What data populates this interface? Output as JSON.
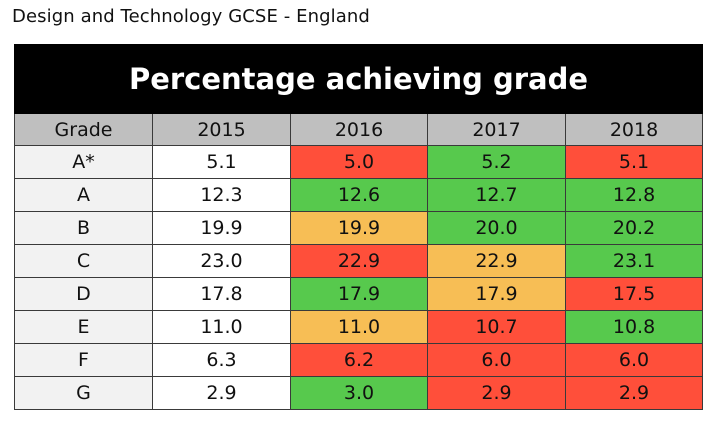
{
  "caption": "Design and Technology GCSE - England",
  "table": {
    "title": "Percentage achieving grade",
    "headers": [
      "Grade",
      "2015",
      "2016",
      "2017",
      "2018"
    ],
    "colors": {
      "red": "#ff4f3a",
      "green": "#57c94d",
      "amber": "#f7be55",
      "header_bg": "#bfbfbf",
      "label_bg": "#f2f2f2",
      "title_bg": "#000000"
    },
    "rows": [
      {
        "grade": "A*",
        "values": [
          "5.1",
          "5.0",
          "5.2",
          "5.1"
        ],
        "colors": [
          "white",
          "red",
          "green",
          "red"
        ]
      },
      {
        "grade": "A",
        "values": [
          "12.3",
          "12.6",
          "12.7",
          "12.8"
        ],
        "colors": [
          "white",
          "green",
          "green",
          "green"
        ]
      },
      {
        "grade": "B",
        "values": [
          "19.9",
          "19.9",
          "20.0",
          "20.2"
        ],
        "colors": [
          "white",
          "amber",
          "green",
          "green"
        ]
      },
      {
        "grade": "C",
        "values": [
          "23.0",
          "22.9",
          "22.9",
          "23.1"
        ],
        "colors": [
          "white",
          "red",
          "amber",
          "green"
        ]
      },
      {
        "grade": "D",
        "values": [
          "17.8",
          "17.9",
          "17.9",
          "17.5"
        ],
        "colors": [
          "white",
          "green",
          "amber",
          "red"
        ]
      },
      {
        "grade": "E",
        "values": [
          "11.0",
          "11.0",
          "10.7",
          "10.8"
        ],
        "colors": [
          "white",
          "amber",
          "red",
          "green"
        ]
      },
      {
        "grade": "F",
        "values": [
          "6.3",
          "6.2",
          "6.0",
          "6.0"
        ],
        "colors": [
          "white",
          "red",
          "red",
          "red"
        ]
      },
      {
        "grade": "G",
        "values": [
          "2.9",
          "3.0",
          "2.9",
          "2.9"
        ],
        "colors": [
          "white",
          "green",
          "red",
          "red"
        ]
      }
    ]
  }
}
